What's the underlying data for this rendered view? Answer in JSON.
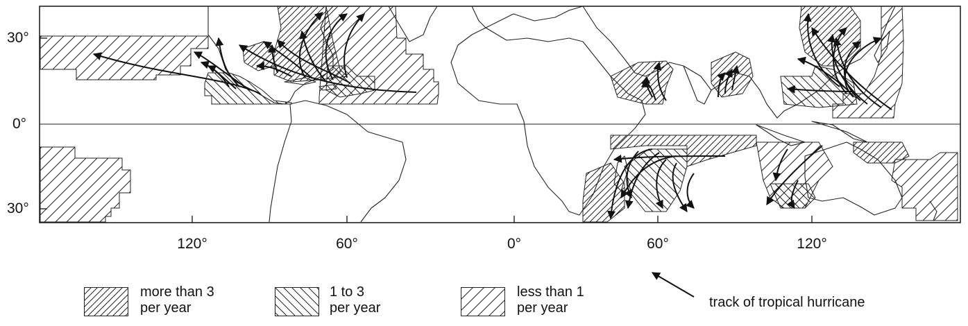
{
  "map": {
    "lat_labels": [
      "30°",
      "0°",
      "30°"
    ],
    "lon_labels": [
      "120°",
      "60°",
      "0°",
      "60°",
      "120°"
    ]
  },
  "legend": {
    "items": [
      {
        "line1": "more than 3",
        "line2": "per year",
        "pattern": "dense-forward-hatch"
      },
      {
        "line1": "1 to 3",
        "line2": "per year",
        "pattern": "backward-hatch"
      },
      {
        "line1": "less than 1",
        "line2": "per year",
        "pattern": "sparse-forward-hatch"
      }
    ],
    "track_label": "track of tropical hurricane"
  },
  "colors": {
    "ink": "#222222",
    "background": "#ffffff"
  }
}
